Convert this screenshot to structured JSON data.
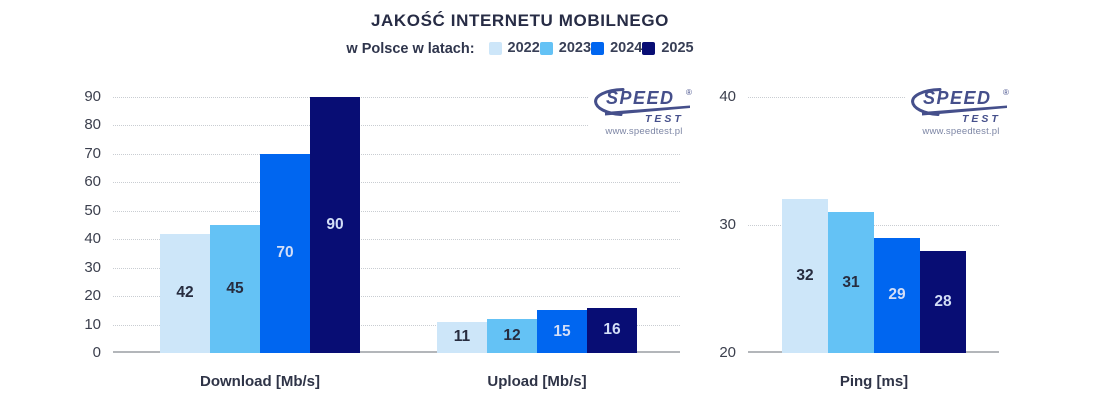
{
  "header": {
    "title": "JAKOŚĆ INTERNETU MOBILNEGO",
    "subtitle_prefix": "w Polsce w latach:",
    "legend": [
      {
        "label": "2022",
        "color": "#cde6f9"
      },
      {
        "label": "2023",
        "color": "#64c2f5"
      },
      {
        "label": "2024",
        "color": "#0066f0"
      },
      {
        "label": "2025",
        "color": "#080d74"
      }
    ]
  },
  "logo": {
    "brand_top": "SPEED",
    "brand_bottom": "TEST",
    "registered_mark": "®",
    "url": "www.speedtest.pl",
    "color": "#454f8b",
    "url_color": "#7d86a5"
  },
  "chart_data": [
    {
      "type": "bar",
      "title": "JAKOŚĆ INTERNETU MOBILNEGO",
      "subtitle": "w Polsce w latach:",
      "categories": [
        "Download [Mb/s]",
        "Upload [Mb/s]"
      ],
      "series": [
        {
          "name": "2022",
          "values": [
            42,
            11
          ],
          "color": "#cde6f9",
          "label_color": "#272c3f"
        },
        {
          "name": "2023",
          "values": [
            45,
            12
          ],
          "color": "#64c2f5",
          "label_color": "#272c3f"
        },
        {
          "name": "2024",
          "values": [
            70,
            15
          ],
          "color": "#0066f0",
          "label_color": "#d3def7"
        },
        {
          "name": "2025",
          "values": [
            90,
            16
          ],
          "color": "#080d74",
          "label_color": "#d3def7"
        }
      ],
      "ylim": [
        0,
        90
      ],
      "ytick_step": 10,
      "yticks": [
        0,
        10,
        20,
        30,
        40,
        50,
        60,
        70,
        80,
        90
      ],
      "grid": true,
      "legend_position": "top"
    },
    {
      "type": "bar",
      "categories": [
        "Ping [ms]"
      ],
      "series": [
        {
          "name": "2022",
          "values": [
            32
          ],
          "color": "#cde6f9",
          "label_color": "#272c3f"
        },
        {
          "name": "2023",
          "values": [
            31
          ],
          "color": "#64c2f5",
          "label_color": "#272c3f"
        },
        {
          "name": "2024",
          "values": [
            29
          ],
          "color": "#0066f0",
          "label_color": "#d3def7"
        },
        {
          "name": "2025",
          "values": [
            28
          ],
          "color": "#080d74",
          "label_color": "#d3def7"
        }
      ],
      "ylim": [
        20,
        40
      ],
      "ytick_step": 10,
      "yticks": [
        20,
        30,
        40
      ],
      "grid": true,
      "legend_position": "top"
    }
  ]
}
